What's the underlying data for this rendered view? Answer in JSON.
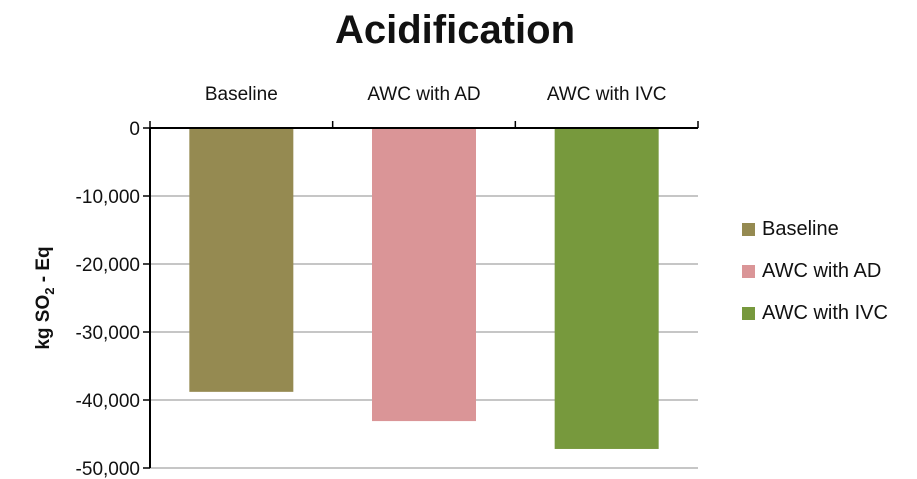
{
  "chart_data": {
    "type": "bar",
    "title": "Acidification",
    "xlabel": "",
    "ylabel_main": "kg SO",
    "ylabel_sub": "2",
    "ylabel_tail": " - Eq",
    "categories": [
      "Baseline",
      "AWC with AD",
      "AWC with IVC"
    ],
    "values": [
      -38800,
      -43100,
      -47200
    ],
    "ylim": [
      -50000,
      0
    ],
    "ticks": [
      0,
      -10000,
      -20000,
      -30000,
      -40000,
      -50000
    ],
    "tick_labels": [
      "0",
      "-10,000",
      "-20,000",
      "-30,000",
      "-40,000",
      "-50,000"
    ],
    "colors": [
      "#958a51",
      "#da9597",
      "#77993d"
    ],
    "grid": true,
    "legend_position": "right",
    "legend": [
      "Baseline",
      "AWC with AD",
      "AWC with IVC"
    ]
  }
}
